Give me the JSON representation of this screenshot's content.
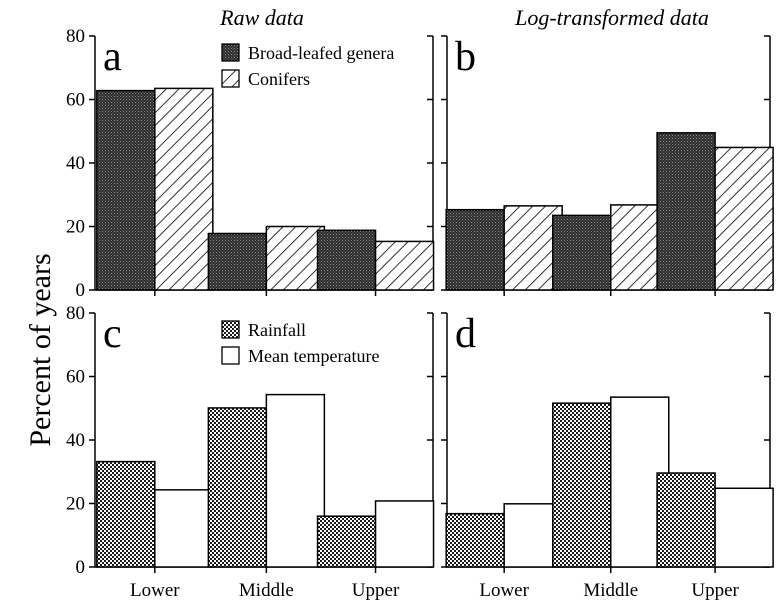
{
  "figure": {
    "ylabel": "Percent of years",
    "column_titles": [
      "Raw data",
      "Log-transformed data"
    ],
    "colors": {
      "ink": "#000000",
      "dark_fill": "#3a3a3a",
      "background": "#ffffff"
    }
  },
  "chart_data": [
    {
      "panel": "a",
      "type": "bar",
      "title": "Raw data",
      "xlabel": "",
      "ylabel": "Percent of years",
      "categories": [
        "",
        "",
        ""
      ],
      "ylim": [
        0,
        80
      ],
      "yticks": [
        0,
        20,
        40,
        60,
        80
      ],
      "legend_position": "top-right",
      "series": [
        {
          "name": "Broad-leafed genera",
          "pattern": "dark-stipple",
          "values": [
            62.8,
            17.8,
            18.8
          ]
        },
        {
          "name": "Conifers",
          "pattern": "diagonal-hatch",
          "values": [
            63.5,
            20.0,
            15.3
          ]
        }
      ]
    },
    {
      "panel": "b",
      "type": "bar",
      "title": "Log-transformed data",
      "xlabel": "",
      "ylabel": "",
      "categories": [
        "",
        "",
        ""
      ],
      "ylim": [
        0,
        80
      ],
      "yticks": [
        0,
        20,
        40,
        60,
        80
      ],
      "legend_position": "none",
      "series": [
        {
          "name": "Broad-leafed genera",
          "pattern": "dark-stipple",
          "values": [
            25.3,
            23.5,
            49.5
          ]
        },
        {
          "name": "Conifers",
          "pattern": "diagonal-hatch",
          "values": [
            26.5,
            26.8,
            44.9
          ]
        }
      ]
    },
    {
      "panel": "c",
      "type": "bar",
      "title": "",
      "xlabel": "",
      "ylabel": "Percent of years",
      "categories": [
        "Lower",
        "Middle",
        "Upper"
      ],
      "ylim": [
        0,
        80
      ],
      "yticks": [
        0,
        20,
        40,
        60,
        80
      ],
      "legend_position": "top-right",
      "series": [
        {
          "name": "Rainfall",
          "pattern": "fine-dot-grid",
          "values": [
            33.2,
            50.1,
            16.0
          ]
        },
        {
          "name": "Mean temperature",
          "pattern": "plain",
          "values": [
            24.3,
            54.3,
            20.8
          ]
        }
      ]
    },
    {
      "panel": "d",
      "type": "bar",
      "title": "",
      "xlabel": "",
      "ylabel": "",
      "categories": [
        "Lower",
        "Middle",
        "Upper"
      ],
      "ylim": [
        0,
        80
      ],
      "yticks": [
        0,
        20,
        40,
        60,
        80
      ],
      "legend_position": "none",
      "series": [
        {
          "name": "Rainfall",
          "pattern": "fine-dot-grid",
          "values": [
            16.8,
            51.6,
            29.6
          ]
        },
        {
          "name": "Mean temperature",
          "pattern": "plain",
          "values": [
            19.9,
            53.5,
            24.8
          ]
        }
      ]
    }
  ]
}
